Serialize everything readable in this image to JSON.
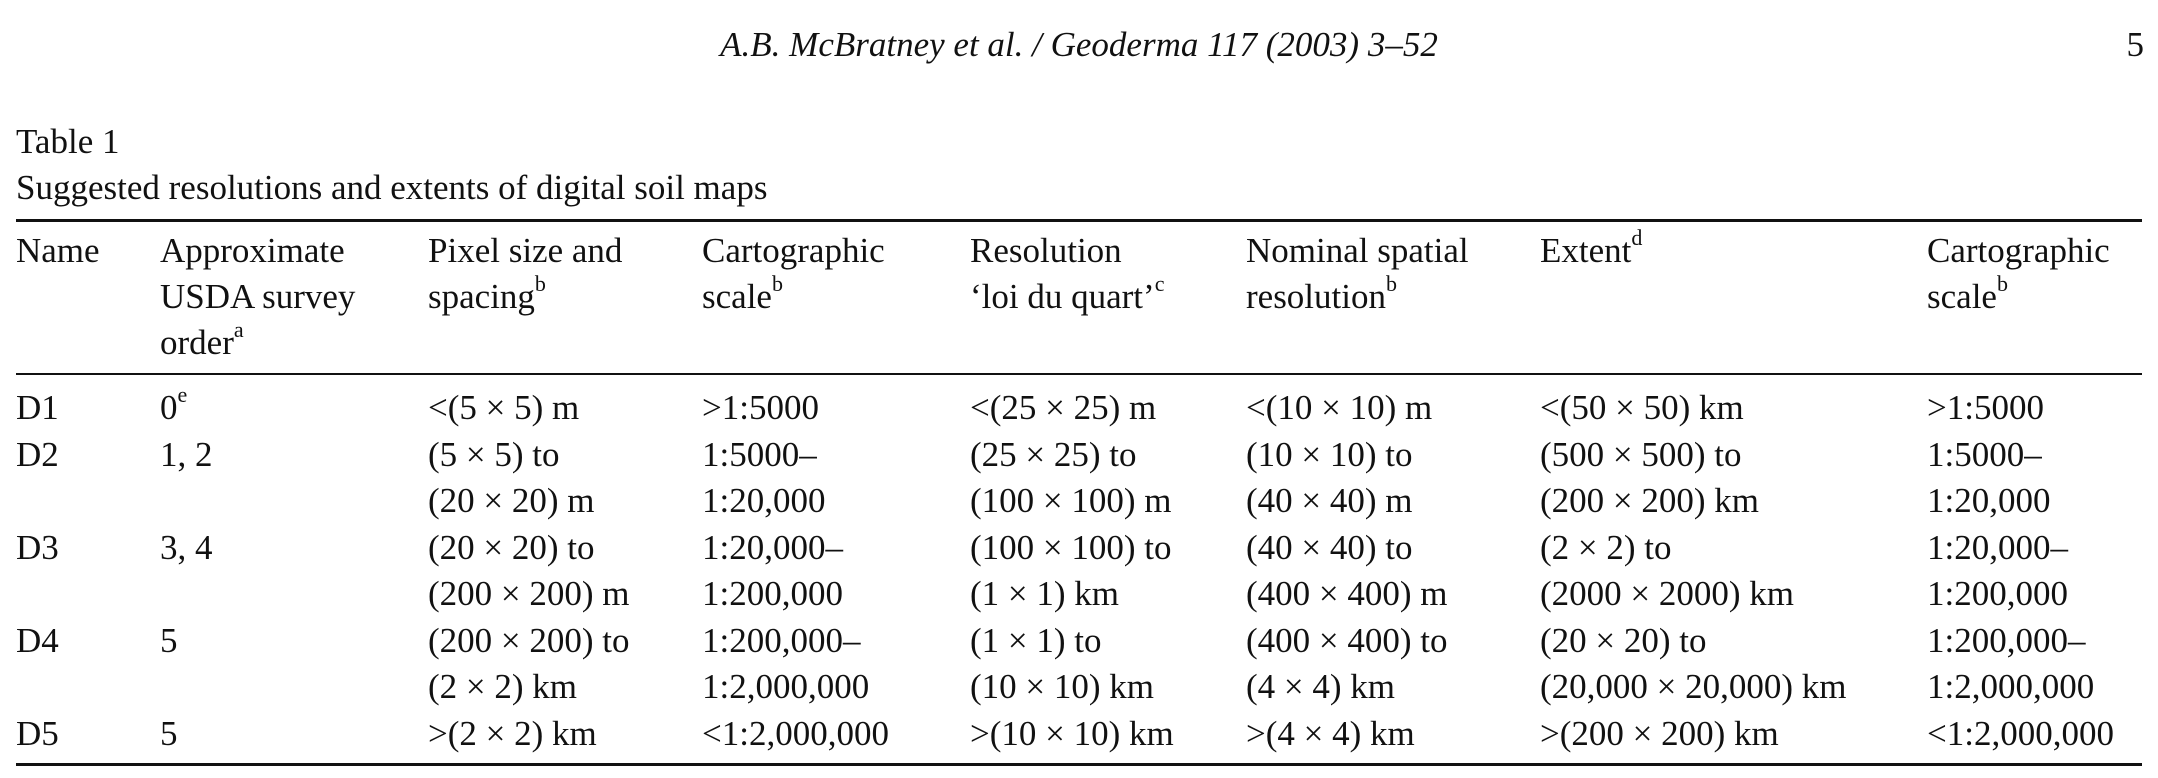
{
  "running_head": {
    "title": "A.B. McBratney et al. / Geoderma 117 (2003) 3–52",
    "page_number": "5"
  },
  "table": {
    "label": "Table 1",
    "caption": "Suggested resolutions and extents of digital soil maps",
    "columns": [
      {
        "lines": [
          "Name"
        ],
        "sup": ""
      },
      {
        "lines": [
          "Approximate",
          "USDA survey",
          "order"
        ],
        "sup": "a"
      },
      {
        "lines": [
          "Pixel size and",
          "spacing"
        ],
        "sup": "b"
      },
      {
        "lines": [
          "Cartographic",
          "scale"
        ],
        "sup": "b"
      },
      {
        "lines": [
          "Resolution",
          "‘loi du quart’"
        ],
        "sup": "c"
      },
      {
        "lines": [
          "Nominal spatial",
          "resolution"
        ],
        "sup": "b"
      },
      {
        "lines": [
          "Extent"
        ],
        "sup": "d"
      },
      {
        "lines": [
          "Cartographic",
          "scale"
        ],
        "sup": "b"
      }
    ],
    "rows": [
      {
        "name": "D1",
        "order": "0",
        "order_sup": "e",
        "cells": [
          [
            "<(5 × 5) m"
          ],
          [
            ">1:5000"
          ],
          [
            "<(25 × 25) m"
          ],
          [
            "<(10 × 10) m"
          ],
          [
            "<(50 × 50) km"
          ],
          [
            ">1:5000"
          ]
        ]
      },
      {
        "name": "D2",
        "order": "1, 2",
        "order_sup": "",
        "cells": [
          [
            "(5 × 5) to",
            "(20 × 20) m"
          ],
          [
            "1:5000–",
            "1:20,000"
          ],
          [
            "(25 × 25) to",
            "(100 × 100) m"
          ],
          [
            "(10 × 10) to",
            "(40 × 40) m"
          ],
          [
            "(500 × 500) to",
            "(200 × 200) km"
          ],
          [
            "1:5000–",
            "1:20,000"
          ]
        ]
      },
      {
        "name": "D3",
        "order": "3, 4",
        "order_sup": "",
        "cells": [
          [
            "(20 × 20) to",
            "(200 × 200) m"
          ],
          [
            "1:20,000–",
            "1:200,000"
          ],
          [
            "(100 × 100) to",
            "(1 × 1) km"
          ],
          [
            "(40 × 40) to",
            "(400 × 400) m"
          ],
          [
            "(2 × 2) to",
            "(2000 × 2000) km"
          ],
          [
            "1:20,000–",
            "1:200,000"
          ]
        ]
      },
      {
        "name": "D4",
        "order": "5",
        "order_sup": "",
        "cells": [
          [
            "(200 × 200) to",
            "(2 × 2) km"
          ],
          [
            "1:200,000–",
            "1:2,000,000"
          ],
          [
            "(1 × 1) to",
            "(10 × 10) km"
          ],
          [
            "(400 × 400) to",
            "(4 × 4) km"
          ],
          [
            "(20 × 20) to",
            "(20,000 × 20,000) km"
          ],
          [
            "1:200,000–",
            "1:2,000,000"
          ]
        ]
      },
      {
        "name": "D5",
        "order": "5",
        "order_sup": "",
        "cells": [
          [
            ">(2 × 2) km"
          ],
          [
            "<1:2,000,000"
          ],
          [
            ">(10 × 10) km"
          ],
          [
            ">(4 × 4) km"
          ],
          [
            ">(200 × 200) km"
          ],
          [
            "<1:2,000,000"
          ]
        ]
      }
    ]
  }
}
